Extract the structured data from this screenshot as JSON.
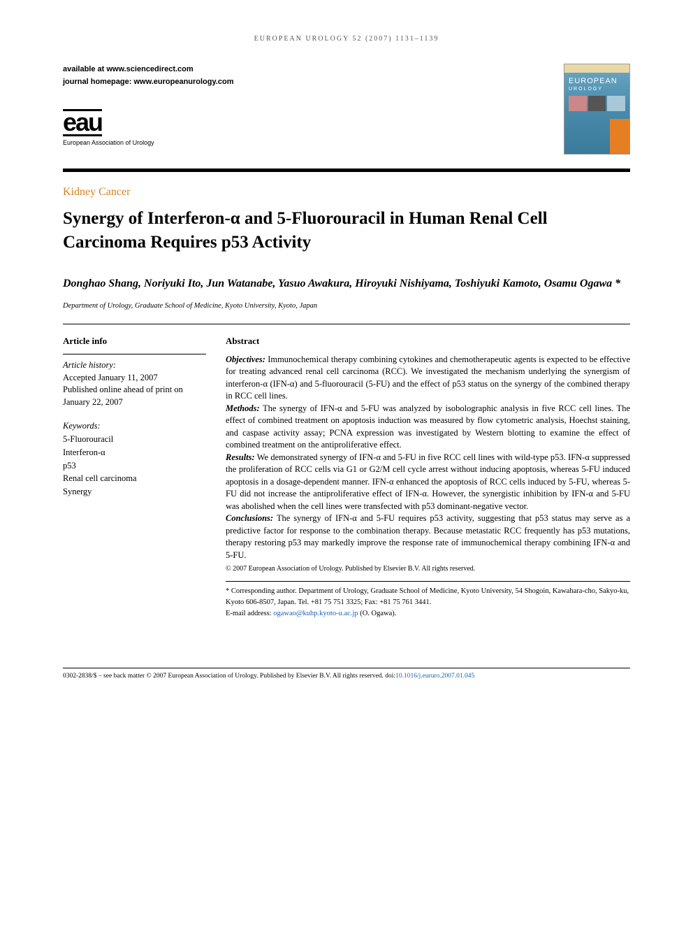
{
  "running_header": "EUROPEAN UROLOGY 52 (2007) 1131–1139",
  "available": {
    "line1": "available at www.sciencedirect.com",
    "line2": "journal homepage: www.europeanurology.com"
  },
  "logo": {
    "abbrev": "eau",
    "fullname": "European Association of Urology"
  },
  "cover": {
    "title": "EUROPEAN",
    "subtitle": "UROLOGY"
  },
  "section_label": "Kidney Cancer",
  "title": "Synergy of Interferon-α and 5-Fluorouracil in Human Renal Cell Carcinoma Requires p53 Activity",
  "authors": "Donghao Shang, Noriyuki Ito, Jun Watanabe, Yasuo Awakura, Hiroyuki Nishiyama, Toshiyuki Kamoto, Osamu Ogawa *",
  "affiliation": "Department of Urology, Graduate School of Medicine, Kyoto University, Kyoto, Japan",
  "article_info": {
    "heading": "Article info",
    "history_label": "Article history:",
    "history": "Accepted January 11, 2007\nPublished online ahead of print on January 22, 2007",
    "keywords_label": "Keywords:",
    "keywords": [
      "5-Fluorouracil",
      "Interferon-α",
      "p53",
      "Renal cell carcinoma",
      "Synergy"
    ]
  },
  "abstract": {
    "heading": "Abstract",
    "objectives_label": "Objectives:",
    "objectives": "Immunochemical therapy combining cytokines and chemotherapeutic agents is expected to be effective for treating advanced renal cell carcinoma (RCC). We investigated the mechanism underlying the synergism of interferon-α (IFN-α) and 5-fluorouracil (5-FU) and the effect of p53 status on the synergy of the combined therapy in RCC cell lines.",
    "methods_label": "Methods:",
    "methods": "The synergy of IFN-α and 5-FU was analyzed by isobolographic analysis in five RCC cell lines. The effect of combined treatment on apoptosis induction was measured by flow cytometric analysis, Hoechst staining, and caspase activity assay; PCNA expression was investigated by Western blotting to examine the effect of combined treatment on the antiproliferative effect.",
    "results_label": "Results:",
    "results": "We demonstrated synergy of IFN-α and 5-FU in five RCC cell lines with wild-type p53. IFN-α suppressed the proliferation of RCC cells via G1 or G2/M cell cycle arrest without inducing apoptosis, whereas 5-FU induced apoptosis in a dosage-dependent manner. IFN-α enhanced the apoptosis of RCC cells induced by 5-FU, whereas 5-FU did not increase the antiproliferative effect of IFN-α. However, the synergistic inhibition by IFN-α and 5-FU was abolished when the cell lines were transfected with p53 dominant-negative vector.",
    "conclusions_label": "Conclusions:",
    "conclusions": "The synergy of IFN-α and 5-FU requires p53 activity, suggesting that p53 status may serve as a predictive factor for response to the combination therapy. Because metastatic RCC frequently has p53 mutations, therapy restoring p53 may markedly improve the response rate of immunochemical therapy combining IFN-α and 5-FU.",
    "copyright": "© 2007 European Association of Urology. Published by Elsevier B.V. All rights reserved."
  },
  "corresponding": {
    "text": "* Corresponding author. Department of Urology, Graduate School of Medicine, Kyoto University, 54 Shogoin, Kawahara-cho, Sakyo-ku, Kyoto 606-8507, Japan. Tel. +81 75 751 3325; Fax: +81 75 761 3441.",
    "email_label": "E-mail address: ",
    "email": "ogawao@kuhp.kyoto-u.ac.jp",
    "email_suffix": " (O. Ogawa)."
  },
  "footer": {
    "text": "0302-2838/$ – see back matter © 2007 European Association of Urology. Published by Elsevier B.V. All rights reserved.   doi:",
    "doi": "10.1016/j.eururo.2007.01.045"
  },
  "colors": {
    "section_label": "#d4821e",
    "link": "#1a5fb4",
    "cover_gradient_top": "#6ba8c4",
    "cover_gradient_bottom": "#3a7a9b",
    "cover_side": "#e67e22"
  },
  "typography": {
    "title_fontsize": 25,
    "authors_fontsize": 16,
    "body_fontsize": 12.5,
    "footer_fontsize": 9.5
  }
}
